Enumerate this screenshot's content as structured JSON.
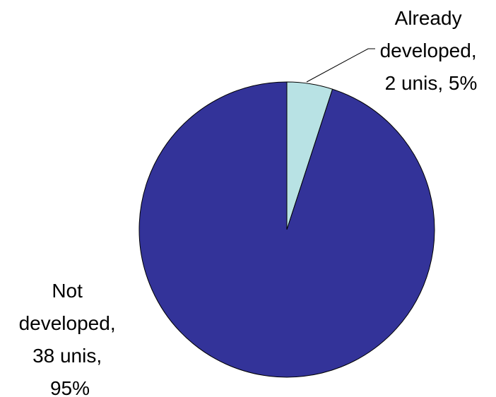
{
  "chart_data": {
    "type": "pie",
    "start_angle_deg": 0,
    "direction": "clockwise",
    "slices": [
      {
        "category": "Already developed",
        "units": 2,
        "percent": 5,
        "color": "#B8E2E4",
        "label_lines": [
          "Already",
          "developed,",
          "2 unis, 5%"
        ]
      },
      {
        "category": "Not developed",
        "units": 38,
        "percent": 95,
        "color": "#333399",
        "label_lines": [
          "Not",
          "developed,",
          "38 unis,",
          "95%"
        ]
      }
    ]
  }
}
